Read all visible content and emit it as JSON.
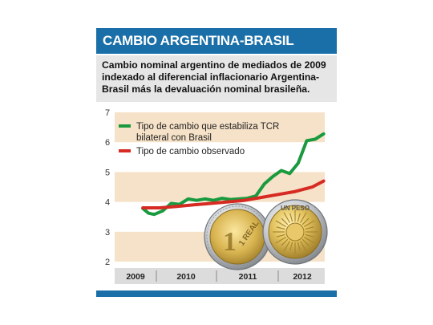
{
  "header": {
    "title": "CAMBIO ARGENTINA-BRASIL",
    "subtitle": "Cambio nominal argentino de mediados de 2009 indexado  al diferencial inflacionario Argentina-Brasil más la devaluación nominal brasileña."
  },
  "colors": {
    "brand_blue": "#1a6fa8",
    "band": "#f6e2c8",
    "green": "#1a9a3e",
    "red": "#d62a22",
    "axis_strip": "#dcdcdc"
  },
  "coins": {
    "brazil": "1 REAL",
    "argentina": "UN PESO"
  },
  "chart_data": {
    "type": "line",
    "x_tick_labels": [
      "2009",
      "2010",
      "2011",
      "2012"
    ],
    "ylim": [
      2,
      7
    ],
    "y_ticks": [
      "2",
      "3",
      "4",
      "5",
      "6",
      "7"
    ],
    "legend_position": "top-left",
    "series": [
      {
        "name": "Tipo de cambio que estabiliza TCR bilateral con Brasil",
        "color": "#1a9a3e",
        "x": [
          2009.5,
          2009.6,
          2009.7,
          2009.85,
          2010.0,
          2010.15,
          2010.3,
          2010.45,
          2010.6,
          2010.75,
          2010.9,
          2011.05,
          2011.2,
          2011.35,
          2011.5,
          2011.65,
          2011.8,
          2011.95,
          2012.1,
          2012.25,
          2012.4,
          2012.55,
          2012.7
        ],
        "values": [
          3.78,
          3.62,
          3.58,
          3.7,
          3.95,
          3.92,
          4.1,
          4.05,
          4.1,
          4.05,
          4.12,
          4.08,
          4.1,
          4.12,
          4.2,
          4.6,
          4.85,
          5.05,
          4.95,
          5.3,
          6.05,
          6.1,
          6.28
        ]
      },
      {
        "name": "Tipo de cambio observado",
        "color": "#d62a22",
        "x": [
          2009.5,
          2009.8,
          2010.1,
          2010.4,
          2010.7,
          2011.0,
          2011.3,
          2011.6,
          2011.9,
          2012.2,
          2012.5,
          2012.7
        ],
        "values": [
          3.8,
          3.8,
          3.85,
          3.9,
          3.95,
          4.0,
          4.05,
          4.15,
          4.25,
          4.35,
          4.5,
          4.7
        ]
      }
    ]
  }
}
